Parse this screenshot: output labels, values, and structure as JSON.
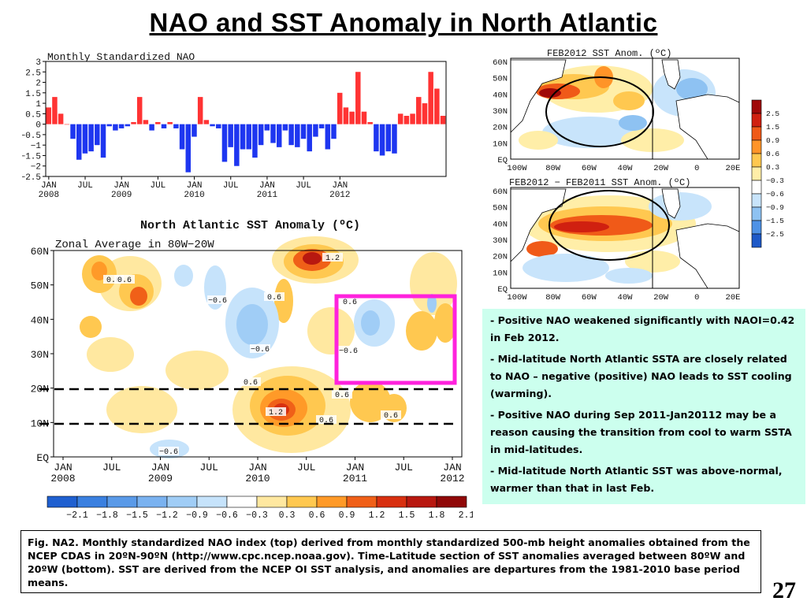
{
  "title": "NAO and SST Anomaly in North Atlantic",
  "chart_data": [
    {
      "type": "bar",
      "title": "Monthly Standardized NAO",
      "ylim": [
        -2.5,
        3
      ],
      "yticks": [
        "3",
        "2.5",
        "2",
        "1.5",
        "1",
        "0.5",
        "0",
        "−0.5",
        "−1",
        "−1.5",
        "−2",
        "−2.5"
      ],
      "xticks": [
        {
          "month": "JAN",
          "year": "2008"
        },
        {
          "month": "JUL",
          "year": ""
        },
        {
          "month": "JAN",
          "year": "2009"
        },
        {
          "month": "JUL",
          "year": ""
        },
        {
          "month": "JAN",
          "year": "2010"
        },
        {
          "month": "JUL",
          "year": ""
        },
        {
          "month": "JAN",
          "year": "2011"
        },
        {
          "month": "JUL",
          "year": ""
        },
        {
          "month": "JAN",
          "year": "2012"
        }
      ],
      "values": [
        0.8,
        1.3,
        0.5,
        0.0,
        -0.7,
        -1.7,
        -1.4,
        -1.3,
        -1.0,
        -1.6,
        -0.1,
        -0.3,
        -0.2,
        -0.1,
        0.1,
        1.3,
        0.2,
        -0.3,
        0.1,
        -0.2,
        0.1,
        -0.2,
        -1.2,
        -2.3,
        -0.6,
        1.3,
        0.2,
        -0.1,
        -0.2,
        -1.8,
        -1.1,
        -2.0,
        -1.2,
        -1.2,
        -1.6,
        -1.0,
        -0.3,
        -0.9,
        -1.1,
        -0.3,
        -1.0,
        -1.1,
        -0.7,
        -1.3,
        -0.6,
        -0.2,
        -1.2,
        -0.7,
        1.5,
        0.8,
        0.6,
        2.5,
        0.6,
        0.1,
        -1.3,
        -1.5,
        -1.3,
        -1.4,
        0.5,
        0.4,
        0.5,
        1.3,
        1.0,
        2.5,
        1.7,
        0.4
      ],
      "colors": {
        "positive": "#ff3333",
        "negative": "#1e36f0"
      }
    },
    {
      "type": "heatmap",
      "title": "North Atlantic SST Anomaly (ºC)",
      "subtitle": "Zonal Average in 80W−20W",
      "yticks": [
        "60N",
        "50N",
        "40N",
        "30N",
        "20N",
        "10N",
        "EQ"
      ],
      "xticks": [
        {
          "month": "JAN",
          "year": "2008"
        },
        {
          "month": "JUL",
          "year": ""
        },
        {
          "month": "JAN",
          "year": "2009"
        },
        {
          "month": "JUL",
          "year": ""
        },
        {
          "month": "JAN",
          "year": "2010"
        },
        {
          "month": "JUL",
          "year": ""
        },
        {
          "month": "JAN",
          "year": "2011"
        },
        {
          "month": "JUL",
          "year": ""
        },
        {
          "month": "JAN",
          "year": "2012"
        }
      ],
      "contour_labels": [
        "0.6",
        "0.6",
        "1.2",
        "−0.6",
        "0.6",
        "−0.6",
        "0.6",
        "−0.6",
        "0.6",
        "0.6",
        "1.2",
        "0.6",
        "0.6",
        "−0.6"
      ],
      "colorbar_labels": [
        "−2.1",
        "−1.8",
        "−1.5",
        "−1.2",
        "−0.9",
        "−0.6",
        "−0.3",
        "0.3",
        "0.6",
        "0.9",
        "1.2",
        "1.5",
        "1.8",
        "2.1"
      ],
      "colorbar_colors": [
        "#1f60d0",
        "#3a80e0",
        "#5a9ae8",
        "#7ab2f0",
        "#a0cdf6",
        "#c6e3fb",
        "#ffffff",
        "#ffe8a0",
        "#ffc850",
        "#ff9a28",
        "#f06018",
        "#d83010",
        "#b81810",
        "#900808"
      ]
    }
  ],
  "maps": [
    {
      "title": "FEB2012 SST Anom. (ºC)",
      "lat_labels": [
        "60N",
        "50N",
        "40N",
        "30N",
        "20N",
        "10N",
        "EQ"
      ],
      "lon_labels": [
        "100W",
        "80W",
        "60W",
        "40W",
        "20W",
        "0",
        "20E"
      ]
    },
    {
      "title": "FEB2012 − FEB2011 SST Anom. (ºC)",
      "lat_labels": [
        "60N",
        "50N",
        "40N",
        "30N",
        "20N",
        "10N",
        "EQ"
      ],
      "lon_labels": [
        "100W",
        "80W",
        "60W",
        "40W",
        "20W",
        "0",
        "20E"
      ]
    }
  ],
  "map_colorbar": {
    "labels": [
      "2.5",
      "1.5",
      "0.9",
      "0.6",
      "0.3",
      "−0.3",
      "−0.6",
      "−0.9",
      "−1.5",
      "−2.5"
    ],
    "colors": [
      "#a00808",
      "#d02010",
      "#f05a18",
      "#ff9428",
      "#ffc850",
      "#ffeea8",
      "#ffffff",
      "#c8e4fb",
      "#8ec2f2",
      "#4e92e6",
      "#1e5ac8"
    ]
  },
  "bullets": [
    "Positive NAO weakened significantly with NAOI=0.42 in Feb 2012.",
    "Mid-latitude North Atlantic SSTA are closely related to NAO – negative (positive) NAO leads to SST cooling (warming).",
    "Positive NAO during Sep 2011-Jan20112 may be a reason causing the transition from cool to warm SSTA in mid-latitudes.",
    "Mid-latitude North Atlantic SST was above-normal, warmer than that in last  Feb."
  ],
  "bullet_marker": "-",
  "caption": "Fig. NA2. Monthly standardized NAO index (top) derived from monthly standardized 500-mb height anomalies obtained from the NCEP CDAS in 20ºN-90ºN (http://www.cpc.ncep.noaa.gov).  Time-Latitude section of SST anomalies averaged between 80ºW and 20ºW (bottom). SST are derived from the NCEP OI SST analysis, and anomalies are departures from the 1981-2010 base period means.",
  "page_number": "27"
}
